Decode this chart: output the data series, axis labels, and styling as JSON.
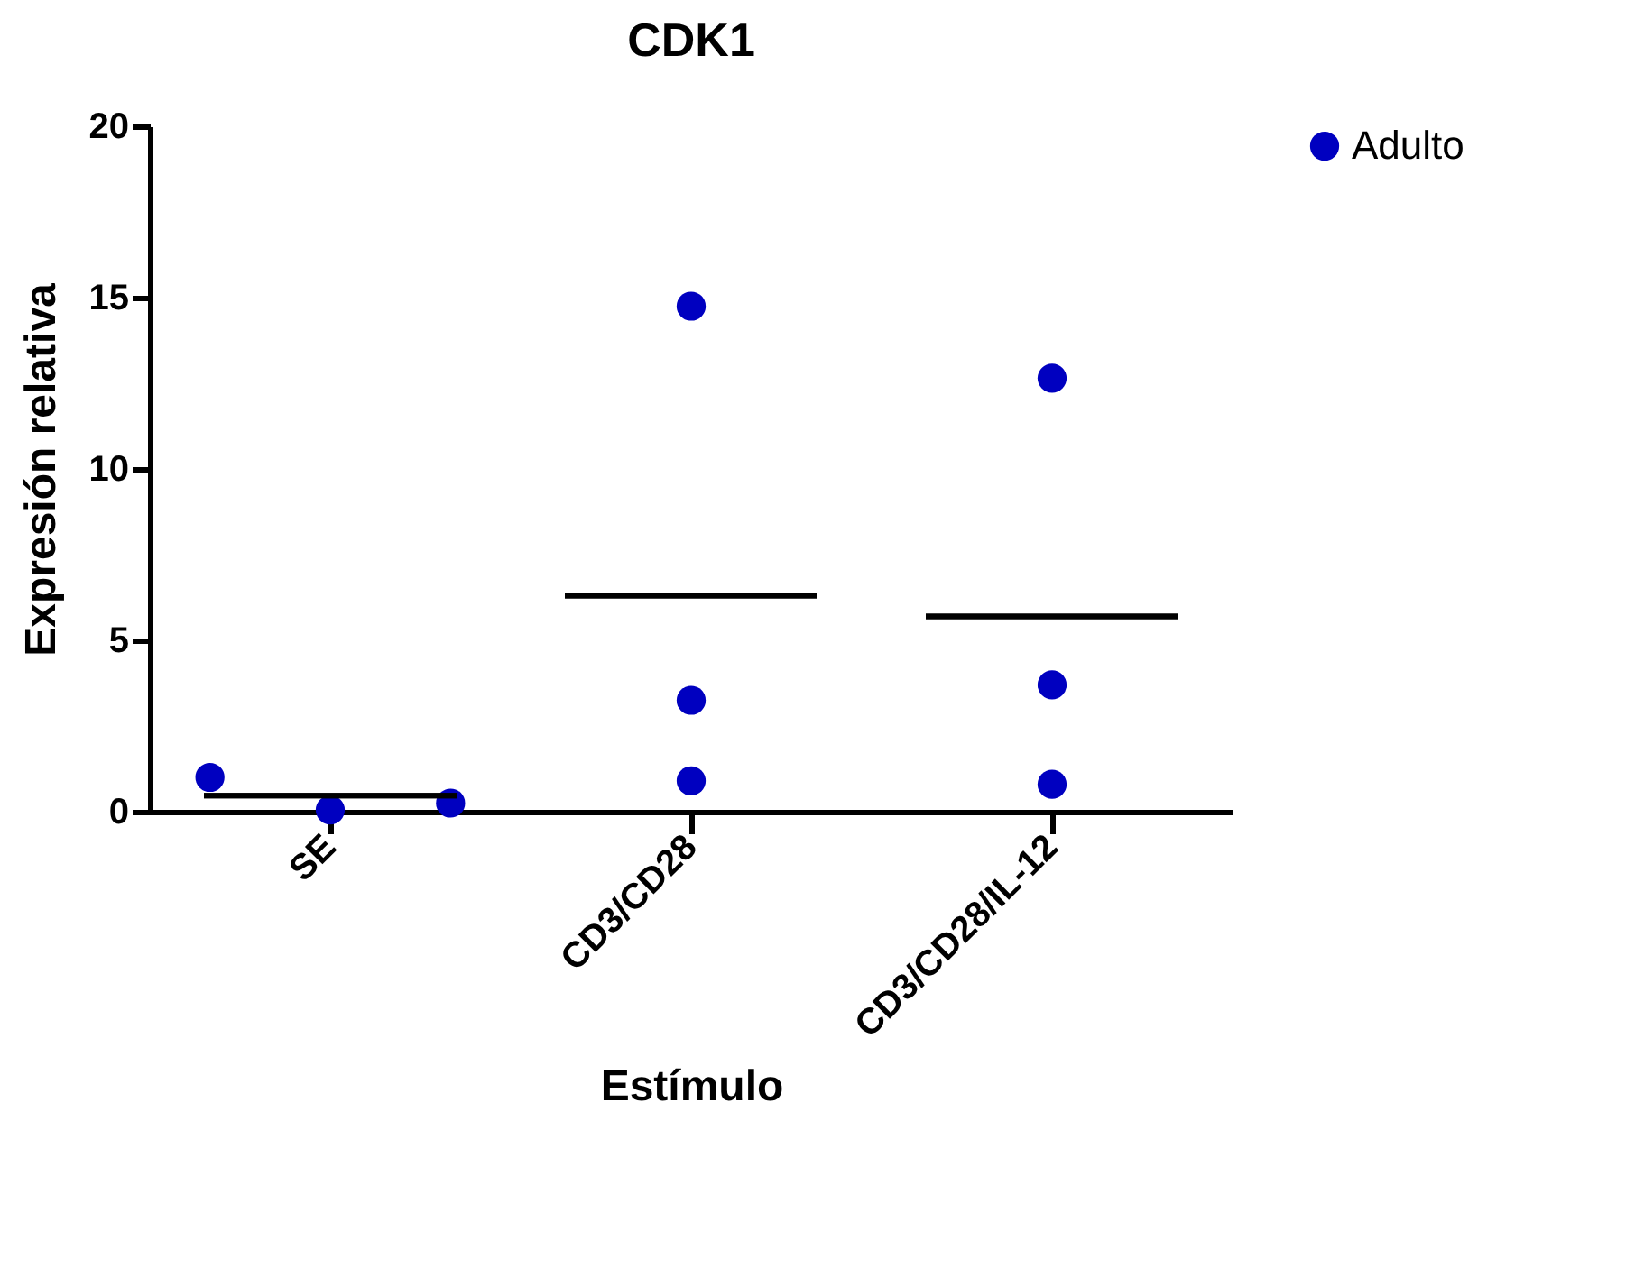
{
  "chart_data": {
    "type": "scatter",
    "title": "CDK1",
    "xlabel": "Estímulo",
    "ylabel": "Expresión relativa",
    "categories": [
      "SE",
      "CD3/CD28",
      "CD3/CD28/IL-12"
    ],
    "series": [
      {
        "name": "Adulto",
        "type": "scatter",
        "color": "#0000c0",
        "x": [
          "SE",
          "SE",
          "SE",
          "CD3/CD28",
          "CD3/CD28",
          "CD3/CD28",
          "CD3/CD28/IL-12",
          "CD3/CD28/IL-12",
          "CD3/CD28/IL-12"
        ],
        "values": [
          1.0,
          0.05,
          0.25,
          14.75,
          3.25,
          0.9,
          12.65,
          3.7,
          0.8
        ]
      },
      {
        "type": "box",
        "color": "#000000",
        "boxes": [
          {
            "low": 0.47,
            "q1": 0.47,
            "median": 0.47,
            "q3": 0.47,
            "high": 0.47
          },
          {
            "low": 6.3,
            "q1": 6.3,
            "median": 6.3,
            "q3": 6.3,
            "high": 6.3
          },
          {
            "low": 5.7,
            "q1": 5.7,
            "median": 5.7,
            "q3": 5.7,
            "high": 5.7
          }
        ]
      }
    ],
    "ylim": [
      0,
      20
    ],
    "yticks": [
      0,
      5,
      10,
      15,
      20
    ],
    "grid": false,
    "legend": "top right",
    "marker": "circle"
  }
}
